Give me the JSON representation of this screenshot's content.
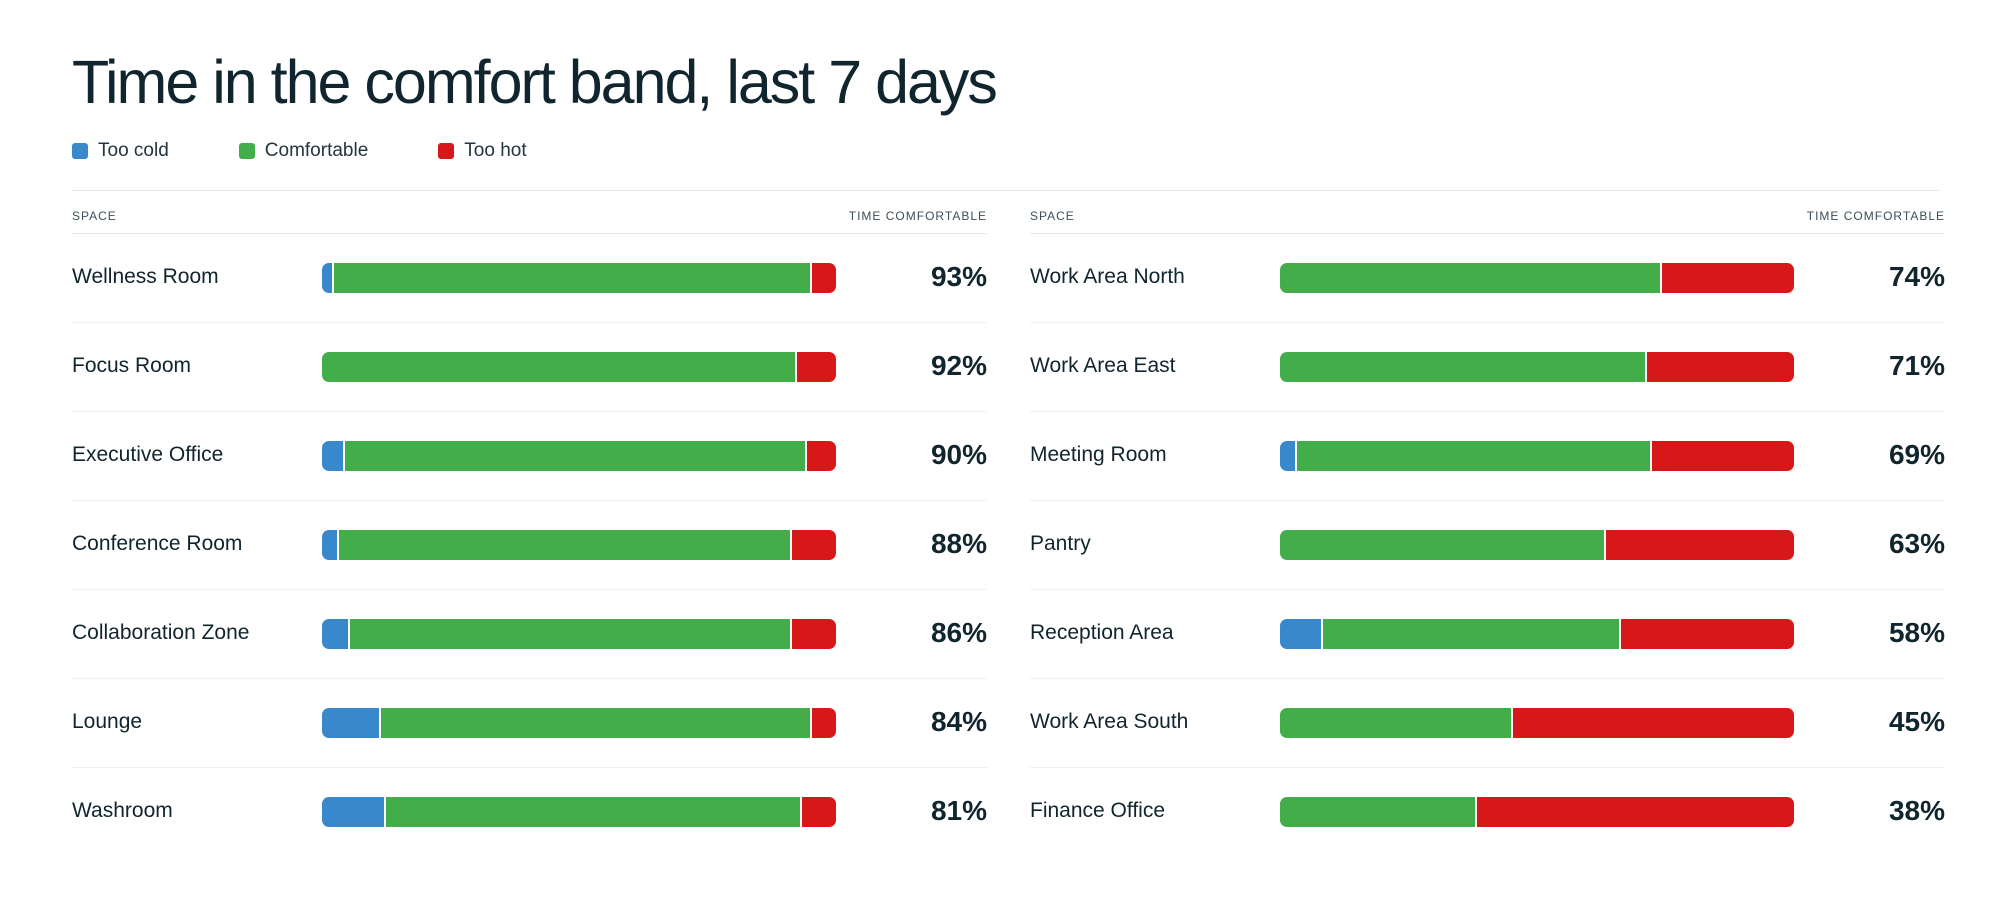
{
  "title": "Time in the comfort band, last 7 days",
  "legend": [
    {
      "label": "Too cold",
      "color": "#3a88cc"
    },
    {
      "label": "Comfortable",
      "color": "#43ad4a"
    },
    {
      "label": "Too hot",
      "color": "#d81818"
    }
  ],
  "headers": {
    "space": "SPACE",
    "pct": "TIME COMFORTABLE"
  },
  "chart_data": {
    "type": "bar",
    "stacked": true,
    "orientation": "horizontal",
    "title": "Time in the comfort band, last 7 days",
    "series_names": [
      "Too cold",
      "Comfortable",
      "Too hot"
    ],
    "series_colors": [
      "#3a88cc",
      "#43ad4a",
      "#d81818"
    ],
    "panels": [
      {
        "rows": [
          {
            "label": "Wellness Room",
            "cold": 2,
            "comfortable": 93,
            "hot": 5,
            "pct_label": "93%"
          },
          {
            "label": "Focus Room",
            "cold": 0,
            "comfortable": 92,
            "hot": 8,
            "pct_label": "92%"
          },
          {
            "label": "Executive Office",
            "cold": 4,
            "comfortable": 90,
            "hot": 6,
            "pct_label": "90%"
          },
          {
            "label": "Conference Room",
            "cold": 3,
            "comfortable": 88,
            "hot": 9,
            "pct_label": "88%"
          },
          {
            "label": "Collaboration Zone",
            "cold": 5,
            "comfortable": 86,
            "hot": 9,
            "pct_label": "86%"
          },
          {
            "label": "Lounge",
            "cold": 11,
            "comfortable": 84,
            "hot": 5,
            "pct_label": "84%"
          },
          {
            "label": "Washroom",
            "cold": 12,
            "comfortable": 81,
            "hot": 7,
            "pct_label": "81%"
          }
        ]
      },
      {
        "rows": [
          {
            "label": "Work Area North",
            "cold": 0,
            "comfortable": 74,
            "hot": 26,
            "pct_label": "74%"
          },
          {
            "label": "Work Area East",
            "cold": 0,
            "comfortable": 71,
            "hot": 29,
            "pct_label": "71%"
          },
          {
            "label": "Meeting Room",
            "cold": 3,
            "comfortable": 69,
            "hot": 28,
            "pct_label": "69%"
          },
          {
            "label": "Pantry",
            "cold": 0,
            "comfortable": 63,
            "hot": 37,
            "pct_label": "63%"
          },
          {
            "label": "Reception Area",
            "cold": 8,
            "comfortable": 58,
            "hot": 34,
            "pct_label": "58%"
          },
          {
            "label": "Work Area South",
            "cold": 0,
            "comfortable": 45,
            "hot": 55,
            "pct_label": "45%"
          },
          {
            "label": "Finance Office",
            "cold": 0,
            "comfortable": 38,
            "hot": 62,
            "pct_label": "38%"
          }
        ]
      }
    ]
  }
}
